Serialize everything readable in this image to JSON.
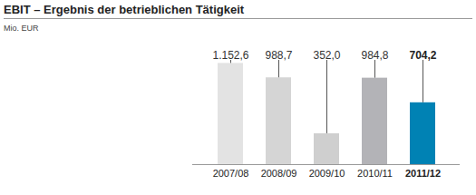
{
  "chart_data": {
    "type": "bar",
    "title": "EBIT – Ergebnis der betrieblichen Tätigkeit",
    "subtitle": "Mio. EUR",
    "categories": [
      "2007/08",
      "2008/09",
      "2009/10",
      "2010/11",
      "2011/12"
    ],
    "values": [
      1152.6,
      988.7,
      352.0,
      984.8,
      704.2
    ],
    "value_labels": [
      "1.152,6",
      "988,7",
      "352,0",
      "984,8",
      "704,2"
    ],
    "colors": [
      "#e3e3e3",
      "#d5d5d5",
      "#cfcfcf",
      "#b3b3b7",
      "#0082b4"
    ],
    "data_labels": true,
    "tick_labels": "x",
    "grid": false
  }
}
